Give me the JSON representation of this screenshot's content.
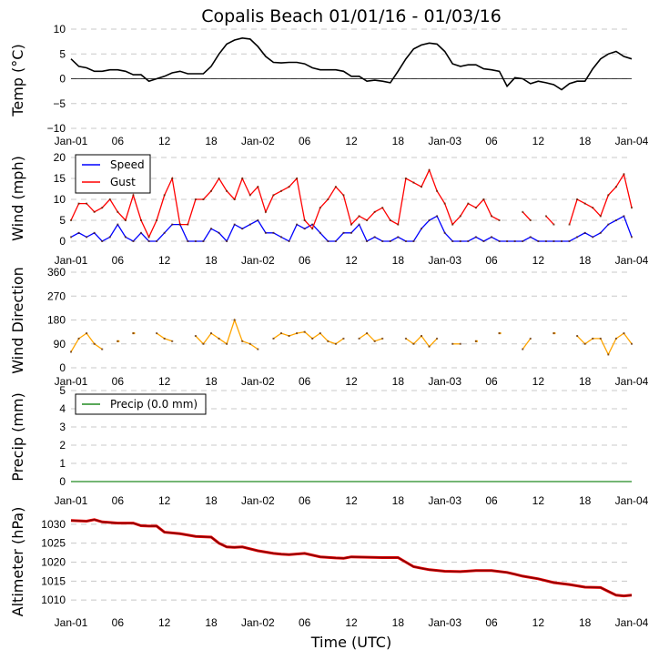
{
  "title": "Copalis Beach 01/01/16 - 01/03/16",
  "x_tick_labels": [
    "Jan-01",
    "06",
    "12",
    "18",
    "Jan-02",
    "06",
    "12",
    "18",
    "Jan-03",
    "06",
    "12",
    "18",
    "Jan-04"
  ],
  "x_axis_label": "Time (UTC)",
  "chart_data": [
    {
      "type": "line",
      "name": "temperature",
      "ylabel": "Temp ($^\\circ$C)",
      "ylabel_display": "Temp (°C)",
      "ylim": [
        -10,
        10
      ],
      "yticks": [
        -10,
        -5,
        0,
        5,
        10
      ],
      "ytick_labels": [
        "−10",
        "−5",
        "0",
        "5",
        "10"
      ],
      "xlim_hours": [
        0,
        72
      ],
      "grid": true,
      "zero_line": true,
      "series": [
        {
          "name": "Temp",
          "color": "#000000",
          "x_hours": [
            0,
            1,
            2,
            3,
            4,
            5,
            6,
            7,
            8,
            9,
            10,
            11,
            12,
            13,
            14,
            15,
            16,
            17,
            18,
            19,
            20,
            21,
            22,
            23,
            24,
            25,
            26,
            27,
            28,
            29,
            30,
            31,
            32,
            33,
            34,
            35,
            36,
            37,
            38,
            39,
            40,
            41,
            42,
            43,
            44,
            45,
            46,
            47,
            48,
            49,
            50,
            51,
            52,
            53,
            54,
            55,
            56,
            57,
            58,
            59,
            60,
            61,
            62,
            63,
            64,
            65,
            66,
            67,
            68,
            69,
            70,
            71,
            72
          ],
          "values": [
            4.0,
            2.5,
            2.2,
            1.5,
            1.5,
            1.8,
            1.8,
            1.5,
            0.8,
            0.8,
            -0.5,
            0.0,
            0.5,
            1.2,
            1.5,
            1.0,
            1.0,
            1.0,
            2.5,
            5.0,
            7.0,
            7.8,
            8.2,
            8.0,
            6.5,
            4.5,
            3.3,
            3.2,
            3.3,
            3.3,
            3.0,
            2.2,
            1.8,
            1.8,
            1.8,
            1.5,
            0.5,
            0.5,
            -0.5,
            -0.3,
            -0.5,
            -0.8,
            1.5,
            4.0,
            6.0,
            6.8,
            7.2,
            7.0,
            5.5,
            3.0,
            2.5,
            2.8,
            2.8,
            2.0,
            1.8,
            1.5,
            -1.5,
            0.2,
            0.0,
            -1.0,
            -0.5,
            -0.8,
            -1.2,
            -2.2,
            -1.0,
            -0.5,
            -0.5,
            2.0,
            4.0,
            5.0,
            5.5,
            4.5,
            4.0
          ]
        }
      ]
    },
    {
      "type": "line",
      "name": "wind",
      "ylabel": "Wind (mph)",
      "ylim": [
        0,
        20
      ],
      "yticks": [
        0,
        5,
        10,
        15,
        20
      ],
      "ytick_labels": [
        "0",
        "5",
        "10",
        "15",
        "20"
      ],
      "xlim_hours": [
        0,
        72
      ],
      "grid": true,
      "legend": "upper-left",
      "series": [
        {
          "name": "Speed",
          "color": "#0000ff",
          "x_hours": [
            0,
            1,
            2,
            3,
            4,
            5,
            6,
            7,
            8,
            9,
            10,
            11,
            12,
            13,
            14,
            15,
            16,
            17,
            18,
            19,
            20,
            21,
            22,
            23,
            24,
            25,
            26,
            27,
            28,
            29,
            30,
            31,
            32,
            33,
            34,
            35,
            36,
            37,
            38,
            39,
            40,
            41,
            42,
            43,
            44,
            45,
            46,
            47,
            48,
            49,
            50,
            51,
            52,
            53,
            54,
            55,
            56,
            57,
            58,
            59,
            60,
            61,
            62,
            63,
            64,
            65,
            66,
            67,
            68,
            69,
            70,
            71,
            72
          ],
          "values": [
            1,
            2,
            1,
            2,
            0,
            1,
            4,
            1,
            0,
            2,
            0,
            0,
            2,
            4,
            4,
            0,
            0,
            0,
            3,
            2,
            0,
            4,
            3,
            4,
            5,
            2,
            2,
            1,
            0,
            4,
            3,
            4,
            2,
            0,
            0,
            2,
            2,
            4,
            0,
            1,
            0,
            0,
            1,
            0,
            0,
            3,
            5,
            6,
            2,
            0,
            0,
            0,
            1,
            0,
            1,
            0,
            0,
            0,
            0,
            1,
            0,
            0,
            0,
            0,
            0,
            1,
            2,
            1,
            2,
            4,
            5,
            6,
            1
          ],
          "current": 1
        },
        {
          "name": "Gust",
          "color": "#ff0000",
          "x_hours": [
            0,
            1,
            2,
            3,
            4,
            5,
            6,
            7,
            8,
            9,
            10,
            11,
            12,
            13,
            14,
            15,
            16,
            17,
            18,
            19,
            20,
            21,
            22,
            23,
            24,
            25,
            26,
            27,
            28,
            29,
            30,
            31,
            32,
            33,
            34,
            35,
            36,
            37,
            38,
            39,
            40,
            41,
            42,
            43,
            44,
            45,
            46,
            47,
            48,
            49,
            50,
            51,
            52,
            53,
            54,
            55,
            56,
            57,
            58,
            59,
            60,
            61,
            62,
            63,
            64,
            65,
            66,
            67,
            68,
            69,
            70,
            71,
            72
          ],
          "values": [
            5,
            9,
            9,
            7,
            8,
            10,
            7,
            5,
            11,
            5,
            1,
            5,
            11,
            15,
            4,
            4,
            10,
            10,
            12,
            15,
            12,
            10,
            15,
            11,
            13,
            7,
            11,
            12,
            13,
            15,
            5,
            3,
            8,
            10,
            13,
            11,
            4,
            6,
            5,
            7,
            8,
            5,
            4,
            15,
            14,
            13,
            17,
            12,
            9,
            4,
            6,
            9,
            8,
            10,
            6,
            5,
            null,
            null,
            7,
            5,
            null,
            6,
            4,
            null,
            4,
            10,
            9,
            8,
            6,
            11,
            13,
            16,
            8
          ]
        }
      ]
    },
    {
      "type": "line",
      "name": "wind_direction",
      "ylabel": "Wind Direction",
      "ylim": [
        0,
        360
      ],
      "yticks": [
        0,
        90,
        180,
        270,
        360
      ],
      "ytick_labels": [
        "0",
        "90",
        "180",
        "270",
        "360"
      ],
      "xlim_hours": [
        0,
        72
      ],
      "grid": true,
      "series": [
        {
          "name": "Wind Direction",
          "color": "#ffa500",
          "x_hours": [
            0,
            1,
            2,
            3,
            4,
            5,
            6,
            7,
            8,
            9,
            10,
            11,
            12,
            13,
            14,
            15,
            16,
            17,
            18,
            19,
            20,
            21,
            22,
            23,
            24,
            25,
            26,
            27,
            28,
            29,
            30,
            31,
            32,
            33,
            34,
            35,
            36,
            37,
            38,
            39,
            40,
            41,
            42,
            43,
            44,
            45,
            46,
            47,
            48,
            49,
            50,
            51,
            52,
            53,
            54,
            55,
            56,
            57,
            58,
            59,
            60,
            61,
            62,
            63,
            64,
            65,
            66,
            67,
            68,
            69,
            70,
            71,
            72
          ],
          "values": [
            60,
            110,
            130,
            90,
            70,
            null,
            100,
            null,
            130,
            null,
            null,
            130,
            110,
            100,
            null,
            null,
            120,
            90,
            130,
            110,
            90,
            180,
            100,
            90,
            70,
            null,
            110,
            130,
            120,
            130,
            135,
            110,
            130,
            100,
            90,
            110,
            null,
            110,
            130,
            100,
            110,
            null,
            null,
            110,
            90,
            120,
            80,
            110,
            null,
            90,
            90,
            null,
            100,
            null,
            null,
            130,
            null,
            null,
            70,
            110,
            null,
            null,
            130,
            null,
            null,
            120,
            90,
            110,
            110,
            50,
            110,
            130,
            90
          ]
        }
      ]
    },
    {
      "type": "line",
      "name": "precip",
      "ylabel": "Precip (mm)",
      "ylim": [
        0,
        5
      ],
      "yticks": [
        0,
        1,
        2,
        3,
        4,
        5
      ],
      "ytick_labels": [
        "0",
        "1",
        "2",
        "3",
        "4",
        "5"
      ],
      "xlim_hours": [
        0,
        72
      ],
      "grid": true,
      "legend": "upper-left",
      "series": [
        {
          "name": "Precip (0.0 mm)",
          "color": "#228b22",
          "x_hours": [
            0,
            72
          ],
          "values": [
            0.0,
            0.0
          ]
        }
      ]
    },
    {
      "type": "line",
      "name": "altimeter",
      "ylabel": "Altimeter (hPa)",
      "ylim": [
        1005,
        1035
      ],
      "yticks": [
        1010,
        1015,
        1020,
        1025,
        1030
      ],
      "ytick_labels": [
        "1010",
        "1015",
        "1020",
        "1025",
        "1030"
      ],
      "xlim_hours": [
        0,
        72
      ],
      "xlabel": "Time (UTC)",
      "grid": true,
      "series": [
        {
          "name": "Altimeter",
          "color": "#8b0000",
          "edge_color": "#ff0000",
          "x_hours": [
            0,
            2,
            3,
            4,
            6,
            8,
            9,
            10,
            11,
            12,
            14,
            16,
            18,
            19,
            20,
            21,
            22,
            24,
            26,
            27,
            28,
            30,
            32,
            34,
            35,
            36,
            38,
            40,
            42,
            43,
            44,
            45,
            46,
            48,
            50,
            52,
            54,
            56,
            57,
            58,
            60,
            62,
            64,
            66,
            68,
            69,
            70,
            71,
            72
          ],
          "values": [
            1031.0,
            1030.8,
            1031.2,
            1030.6,
            1030.3,
            1030.3,
            1029.6,
            1029.5,
            1029.5,
            1027.9,
            1027.5,
            1026.8,
            1026.6,
            1025.0,
            1024.0,
            1023.9,
            1024.0,
            1023.0,
            1022.3,
            1022.1,
            1022.0,
            1022.3,
            1021.4,
            1021.1,
            1021.0,
            1021.4,
            1021.3,
            1021.2,
            1021.2,
            1020.0,
            1018.8,
            1018.4,
            1018.0,
            1017.6,
            1017.5,
            1017.8,
            1017.8,
            1017.3,
            1016.8,
            1016.3,
            1015.6,
            1014.6,
            1014.1,
            1013.4,
            1013.3,
            1012.3,
            1011.3,
            1011.1,
            1011.3
          ]
        }
      ]
    }
  ]
}
